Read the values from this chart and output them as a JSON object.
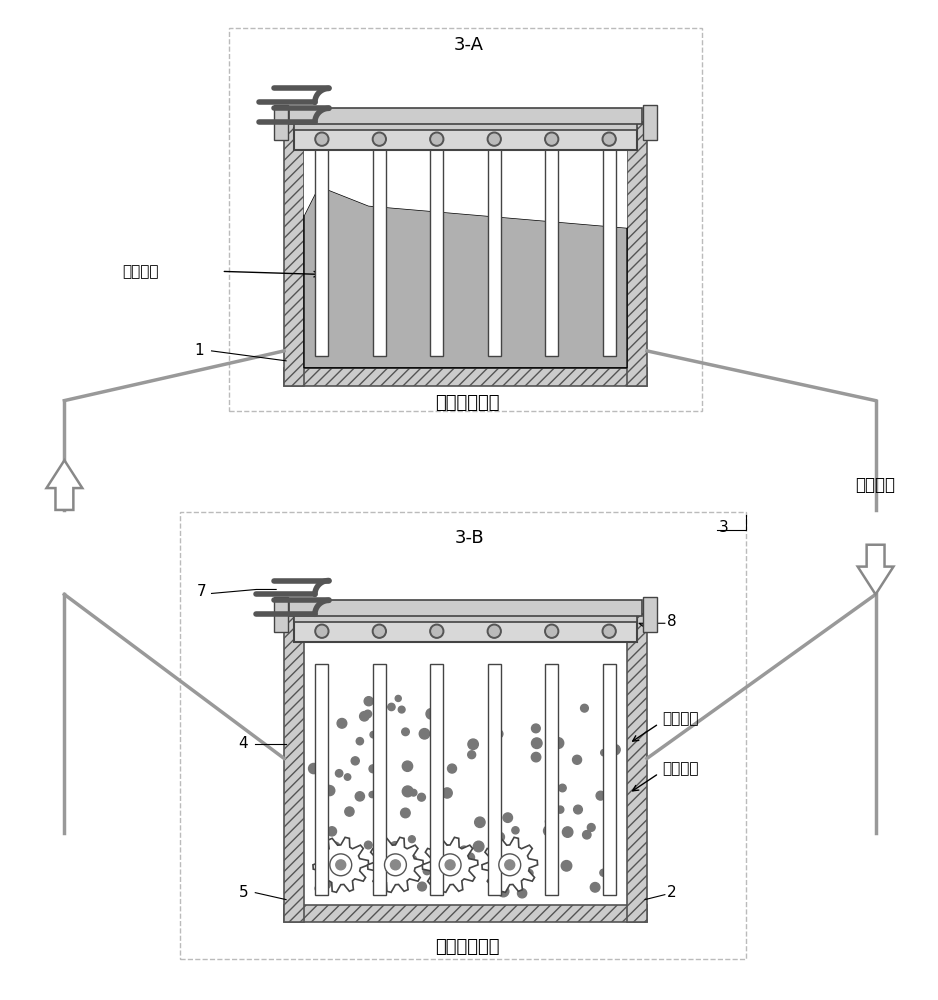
{
  "bg_color": "#ffffff",
  "line_color": "#000000",
  "gray_fill": "#b0b0b0",
  "light_gray": "#d8d8d8",
  "hatch_color": "#555555",
  "dashed_box_color": "#aaaaaa",
  "title_top": "3-A",
  "title_bottom": "3-B",
  "label_waste_heat": "余热回收过程",
  "label_granulation": "燓渣粒化过程",
  "label_simultaneous": "同时运行",
  "label_liquid_slag": "液态燓渣",
  "label_track": "运行轨迹",
  "label_particles": "燓渣颗粒",
  "label_1": "1",
  "label_2": "2",
  "label_3": "3",
  "label_4": "4",
  "label_5": "5",
  "label_7": "7",
  "label_8": "8"
}
